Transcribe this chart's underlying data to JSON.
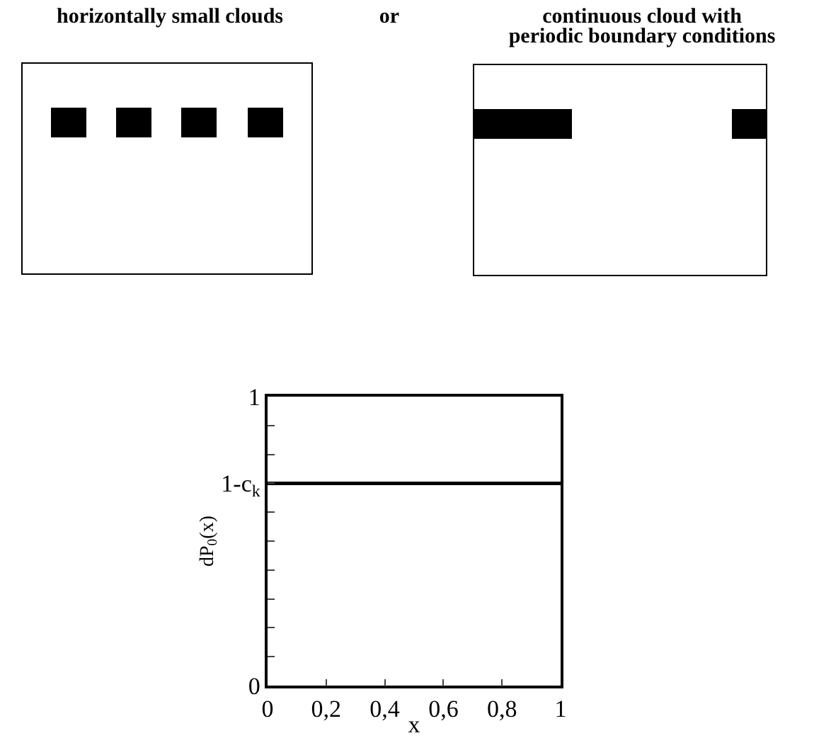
{
  "chart_data": {
    "type": "line",
    "xlabel": "x",
    "ylabel": "dP$_{0}$(x)",
    "annotations": [
      "horizontally small clouds",
      "or",
      "continuous cloud with\nperiodic boundary conditions"
    ],
    "x": [
      0,
      1
    ],
    "series": [
      {
        "color": "#000000",
        "values": [
          0.7,
          0.7
        ]
      }
    ],
    "xlim": [
      0,
      1
    ],
    "ylim": [
      0,
      1
    ],
    "xticks": [
      0,
      {
        "value": 0.2,
        "label": "0,2"
      },
      {
        "value": 0.4,
        "label": "0,4"
      },
      {
        "value": 0.6,
        "label": "0,6"
      },
      {
        "value": 0.8,
        "label": "0,8"
      },
      1
    ],
    "yticks": [
      0,
      {
        "value": 0.1,
        "label": null
      },
      {
        "value": 0.2,
        "label": null
      },
      {
        "value": 0.3,
        "label": null
      },
      {
        "value": 0.4,
        "label": null
      },
      {
        "value": 0.5,
        "label": null
      },
      {
        "value": 0.6,
        "label": null
      },
      {
        "value": 0.7,
        "label": "1-c$_{k}$"
      },
      {
        "value": 0.8,
        "label": null
      },
      {
        "value": 0.9,
        "label": null
      },
      1
    ],
    "grid": false,
    "legend": false,
    "marker": "none",
    "line_style": "solid"
  }
}
